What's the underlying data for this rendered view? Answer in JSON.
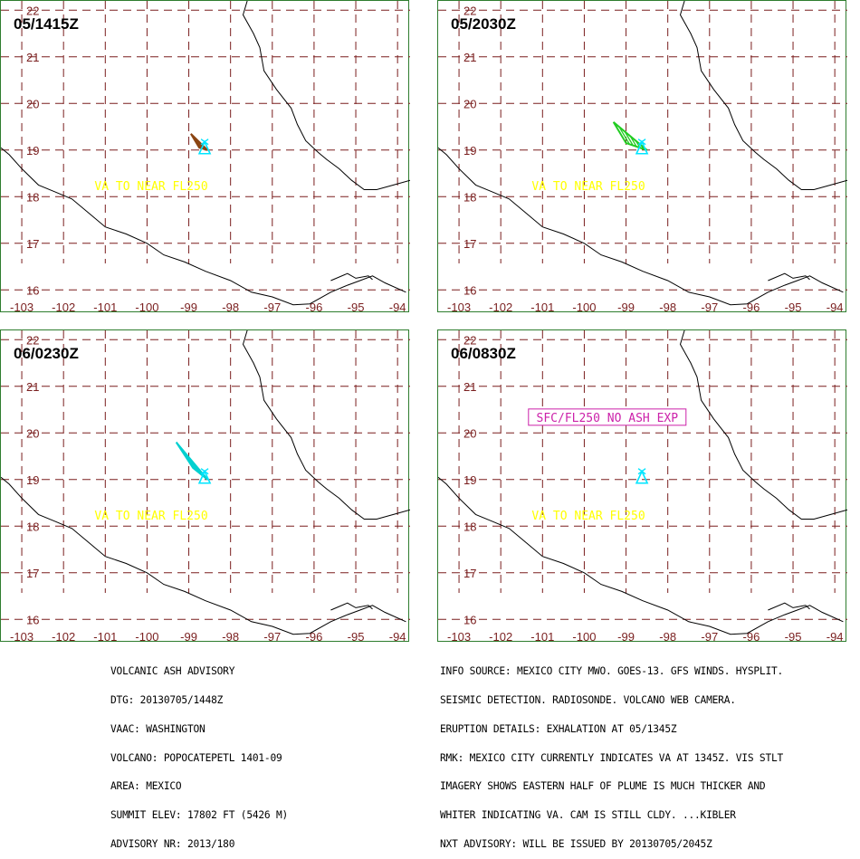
{
  "map_config": {
    "lon_ticks": [
      -103,
      -102,
      -101,
      -100,
      -99,
      -98,
      -97,
      -96,
      -95,
      -94
    ],
    "lat_ticks": [
      16,
      17,
      18,
      19,
      20,
      21,
      22
    ],
    "grid_color": "#7a1f1f",
    "coast_color": "#000000",
    "volcano_color": "#00e5ff"
  },
  "panels": [
    {
      "title": "05/1415Z",
      "plume": {
        "color": "#8b4513",
        "points": [
          [
            -98.55,
            19.0
          ],
          [
            -98.95,
            19.35
          ],
          [
            -98.75,
            19.05
          ]
        ]
      },
      "label": {
        "text": "VA TO NEAR FL250",
        "color": "#ffff00",
        "lon": -99.9,
        "lat": 18.2,
        "boxed": false
      }
    },
    {
      "title": "05/2030Z",
      "plume": {
        "color": "#22cc22",
        "points": [
          [
            -98.5,
            19.0
          ],
          [
            -99.3,
            19.6
          ],
          [
            -99.0,
            19.15
          ]
        ]
      },
      "label": {
        "text": "VA TO NEAR FL250",
        "color": "#ffff00",
        "lon": -99.9,
        "lat": 18.2,
        "boxed": false
      }
    },
    {
      "title": "06/0230Z",
      "plume": {
        "color": "#00d0d0",
        "points": [
          [
            -98.55,
            19.0
          ],
          [
            -99.3,
            19.8
          ],
          [
            -98.9,
            19.25
          ]
        ]
      },
      "label": {
        "text": "VA TO NEAR FL250",
        "color": "#ffff00",
        "lon": -99.9,
        "lat": 18.2,
        "boxed": false
      }
    },
    {
      "title": "06/0830Z",
      "plume": null,
      "label": {
        "text": "VA TO NEAR FL250",
        "color": "#ffff00",
        "lon": -99.9,
        "lat": 18.2,
        "boxed": false
      },
      "label2": {
        "text": "SFC/FL250 NO ASH EXP",
        "color": "#cc22aa",
        "lon": -99.45,
        "lat": 20.3,
        "boxed": true
      }
    }
  ],
  "advisory_left": [
    "VOLCANIC ASH ADVISORY",
    "DTG: 20130705/1448Z",
    "VAAC: WASHINGTON",
    "VOLCANO: POPOCATEPETL 1401-09",
    "AREA: MEXICO",
    "SUMMIT ELEV: 17802 FT (5426 M)",
    "ADVISORY NR: 2013/180"
  ],
  "advisory_right": [
    "INFO SOURCE: MEXICO CITY MWO. GOES-13. GFS WINDS. HYSPLIT.",
    "SEISMIC DETECTION. RADIOSONDE. VOLCANO WEB CAMERA.",
    "ERUPTION DETAILS: EXHALATION AT 05/1345Z",
    "RMK: MEXICO CITY CURRENTLY INDICATES VA AT 1345Z. VIS STLT",
    "IMAGERY SHOWS EASTERN HALF OF PLUME IS MUCH THICKER AND",
    "WHITER INDICATING VA. CAM IS STILL CLDY. ...KIBLER",
    "NXT ADVISORY: WILL BE ISSUED BY 20130705/2045Z"
  ]
}
